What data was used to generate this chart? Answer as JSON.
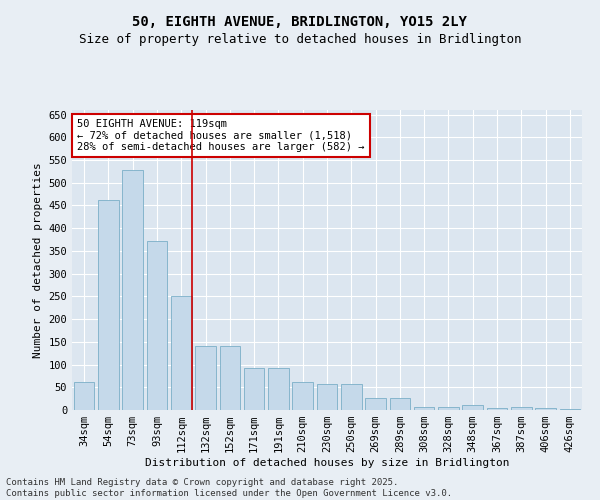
{
  "title": "50, EIGHTH AVENUE, BRIDLINGTON, YO15 2LY",
  "subtitle": "Size of property relative to detached houses in Bridlington",
  "xlabel": "Distribution of detached houses by size in Bridlington",
  "ylabel": "Number of detached properties",
  "categories": [
    "34sqm",
    "54sqm",
    "73sqm",
    "93sqm",
    "112sqm",
    "132sqm",
    "152sqm",
    "171sqm",
    "191sqm",
    "210sqm",
    "230sqm",
    "250sqm",
    "269sqm",
    "289sqm",
    "308sqm",
    "328sqm",
    "348sqm",
    "367sqm",
    "387sqm",
    "406sqm",
    "426sqm"
  ],
  "values": [
    62,
    462,
    528,
    372,
    250,
    140,
    140,
    93,
    93,
    62,
    57,
    57,
    27,
    27,
    7,
    7,
    10,
    5,
    7,
    4,
    3
  ],
  "bar_color": "#c5d9ea",
  "bar_edge_color": "#7aafc8",
  "annotation_text": "50 EIGHTH AVENUE: 119sqm\n← 72% of detached houses are smaller (1,518)\n28% of semi-detached houses are larger (582) →",
  "annotation_box_color": "#ffffff",
  "annotation_box_edge": "#cc0000",
  "annotation_text_color": "#000000",
  "vline_color": "#cc0000",
  "vline_x": 4.43,
  "ylim": [
    0,
    660
  ],
  "yticks": [
    0,
    50,
    100,
    150,
    200,
    250,
    300,
    350,
    400,
    450,
    500,
    550,
    600,
    650
  ],
  "bg_color": "#e8eef4",
  "plot_bg_color": "#dce6f0",
  "grid_color": "#ffffff",
  "footer_line1": "Contains HM Land Registry data © Crown copyright and database right 2025.",
  "footer_line2": "Contains public sector information licensed under the Open Government Licence v3.0.",
  "title_fontsize": 10,
  "subtitle_fontsize": 9,
  "axis_label_fontsize": 8,
  "tick_fontsize": 7.5,
  "annotation_fontsize": 7.5,
  "footer_fontsize": 6.5
}
